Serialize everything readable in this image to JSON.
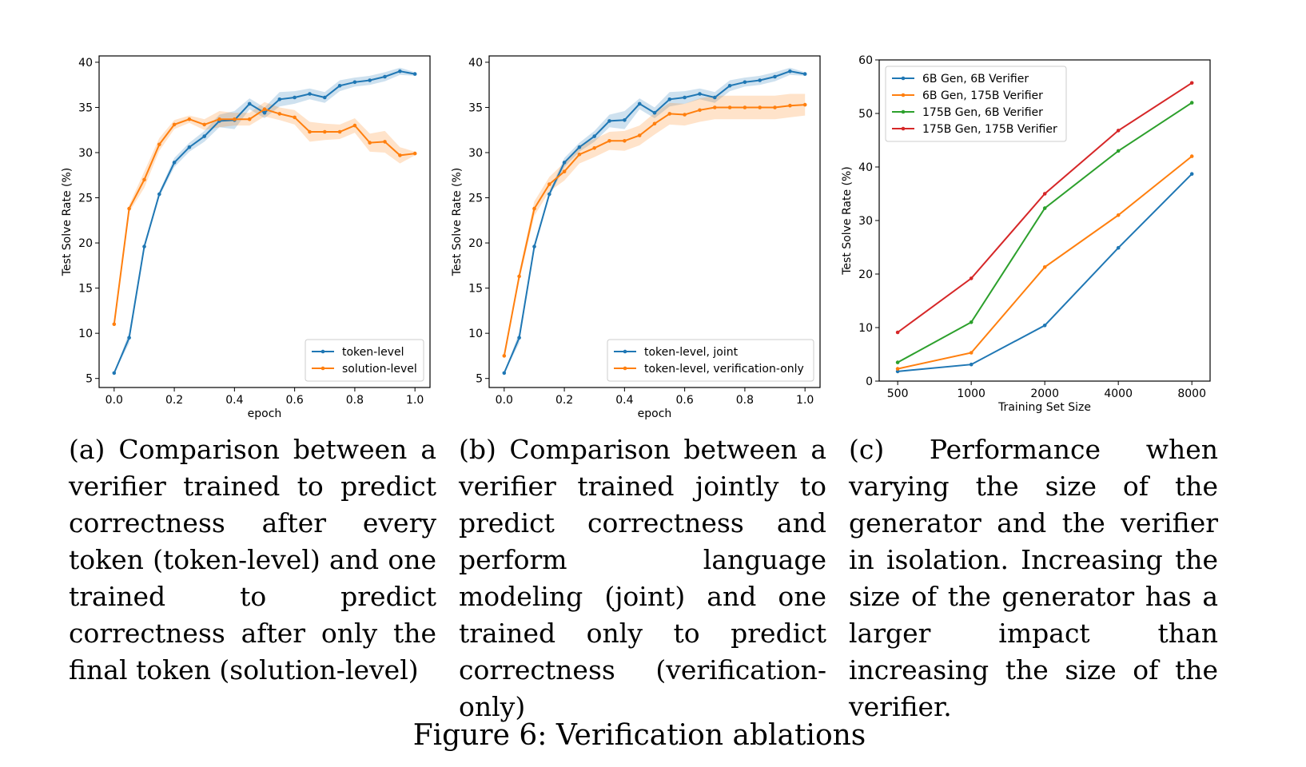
{
  "colors": {
    "blue": "#1f77b4",
    "orange": "#ff7f0e",
    "green": "#2ca02c",
    "red": "#d62728"
  },
  "captions": {
    "a": "(a) Comparison between a verifier trained to predict correctness after every token (token-level) and one trained to predict correctness after only the final token (solution-level)",
    "b": "(b) Comparison between a verifier trained jointly to predict correctness and perform language modeling (joint) and one trained only to predict correctness (verification-only)",
    "c": "(c) Performance when varying the size of the generator and the verifier in isolation. Increasing the size of the generator has a larger impact than increasing the size of the verifier."
  },
  "figure_title": "Figure 6: Verification ablations",
  "chart_data": [
    {
      "type": "line",
      "id": "a",
      "xlabel": "epoch",
      "ylabel": "Test Solve Rate (%)",
      "xlim": [
        -0.05,
        1.05
      ],
      "ylim": [
        4,
        40.7
      ],
      "xticks": [
        "0.0",
        "0.2",
        "0.4",
        "0.6",
        "0.8",
        "1.0"
      ],
      "yticks": [
        "5",
        "10",
        "15",
        "20",
        "25",
        "30",
        "35",
        "40"
      ],
      "legend_position": "lower right",
      "x": [
        0.0,
        0.05,
        0.1,
        0.15,
        0.2,
        0.25,
        0.3,
        0.35,
        0.4,
        0.45,
        0.5,
        0.55,
        0.6,
        0.65,
        0.7,
        0.75,
        0.8,
        0.85,
        0.9,
        0.95,
        1.0
      ],
      "series": [
        {
          "name": "token-level",
          "color": "#1f77b4",
          "values": [
            5.6,
            9.5,
            19.6,
            25.4,
            28.9,
            30.6,
            31.8,
            33.5,
            33.6,
            35.4,
            34.4,
            35.9,
            36.1,
            36.5,
            36.1,
            37.4,
            37.8,
            38.0,
            38.4,
            39.0,
            38.7
          ],
          "band": [
            0,
            0.6,
            0.3,
            0.3,
            0.5,
            0.5,
            0.6,
            0.7,
            1.0,
            0.6,
            0.6,
            0.8,
            0.7,
            0.6,
            0.6,
            0.6,
            0.5,
            0.5,
            0.5,
            0.4,
            0.2
          ]
        },
        {
          "name": "solution-level",
          "color": "#ff7f0e",
          "values": [
            11.0,
            23.8,
            27.0,
            30.9,
            33.1,
            33.7,
            33.1,
            33.7,
            33.7,
            33.7,
            34.8,
            34.3,
            33.9,
            32.3,
            32.3,
            32.3,
            33.0,
            31.1,
            31.2,
            29.7,
            29.9
          ],
          "band": [
            0,
            0.4,
            0.9,
            0.7,
            0.5,
            0.4,
            0.6,
            0.9,
            0.7,
            0.7,
            0.8,
            0.7,
            0.8,
            1.1,
            0.9,
            0.8,
            0.8,
            1.0,
            1.2,
            0.9,
            0.2
          ]
        }
      ]
    },
    {
      "type": "line",
      "id": "b",
      "xlabel": "epoch",
      "ylabel": "Test Solve Rate (%)",
      "xlim": [
        -0.05,
        1.05
      ],
      "ylim": [
        4,
        40.7
      ],
      "xticks": [
        "0.0",
        "0.2",
        "0.4",
        "0.6",
        "0.8",
        "1.0"
      ],
      "yticks": [
        "5",
        "10",
        "15",
        "20",
        "25",
        "30",
        "35",
        "40"
      ],
      "legend_position": "lower right",
      "x": [
        0.0,
        0.05,
        0.1,
        0.15,
        0.2,
        0.25,
        0.3,
        0.35,
        0.4,
        0.45,
        0.5,
        0.55,
        0.6,
        0.65,
        0.7,
        0.75,
        0.8,
        0.85,
        0.9,
        0.95,
        1.0
      ],
      "series": [
        {
          "name": "token-level, joint",
          "color": "#1f77b4",
          "values": [
            5.6,
            9.5,
            19.6,
            25.4,
            28.9,
            30.6,
            31.8,
            33.5,
            33.6,
            35.4,
            34.4,
            35.9,
            36.1,
            36.5,
            36.1,
            37.4,
            37.8,
            38.0,
            38.4,
            39.0,
            38.7
          ],
          "band": [
            0,
            0.6,
            0.3,
            0.3,
            0.5,
            0.5,
            0.6,
            0.7,
            1.0,
            0.6,
            0.6,
            0.8,
            0.7,
            0.6,
            0.6,
            0.6,
            0.5,
            0.5,
            0.5,
            0.4,
            0.2
          ]
        },
        {
          "name": "token-level, verification-only",
          "color": "#ff7f0e",
          "values": [
            7.5,
            16.3,
            23.8,
            26.5,
            27.9,
            29.8,
            30.5,
            31.3,
            31.3,
            31.9,
            33.2,
            34.3,
            34.2,
            34.7,
            35.0,
            35.0,
            35.0,
            35.0,
            35.0,
            35.2,
            35.3
          ],
          "band": [
            0,
            0.5,
            0.8,
            0.8,
            1.0,
            1.0,
            1.0,
            1.0,
            1.1,
            1.1,
            1.2,
            1.2,
            1.2,
            1.3,
            1.3,
            1.3,
            1.3,
            1.3,
            1.3,
            1.3,
            1.2
          ]
        }
      ]
    },
    {
      "type": "line",
      "id": "c",
      "xlabel": "Training Set Size",
      "ylabel": "Test Solve Rate (%)",
      "x_scale": "log",
      "xlim": [
        420,
        9500
      ],
      "ylim": [
        0,
        60
      ],
      "x": [
        500,
        1000,
        2000,
        4000,
        8000
      ],
      "xticks": [
        "500",
        "1000",
        "2000",
        "4000",
        "8000"
      ],
      "yticks": [
        "0",
        "10",
        "20",
        "30",
        "40",
        "50",
        "60"
      ],
      "legend_position": "upper left",
      "series": [
        {
          "name": "6B Gen, 6B Verifier",
          "color": "#1f77b4",
          "values": [
            1.8,
            3.1,
            10.4,
            24.9,
            38.7
          ]
        },
        {
          "name": "6B Gen, 175B Verifier",
          "color": "#ff7f0e",
          "values": [
            2.3,
            5.3,
            21.3,
            31.0,
            42.0
          ]
        },
        {
          "name": "175B Gen, 6B Verifier",
          "color": "#2ca02c",
          "values": [
            3.5,
            11.0,
            32.3,
            43.0,
            52.0
          ]
        },
        {
          "name": "175B Gen, 175B Verifier",
          "color": "#d62728",
          "values": [
            9.1,
            19.2,
            35.0,
            46.8,
            55.7
          ]
        }
      ]
    }
  ]
}
